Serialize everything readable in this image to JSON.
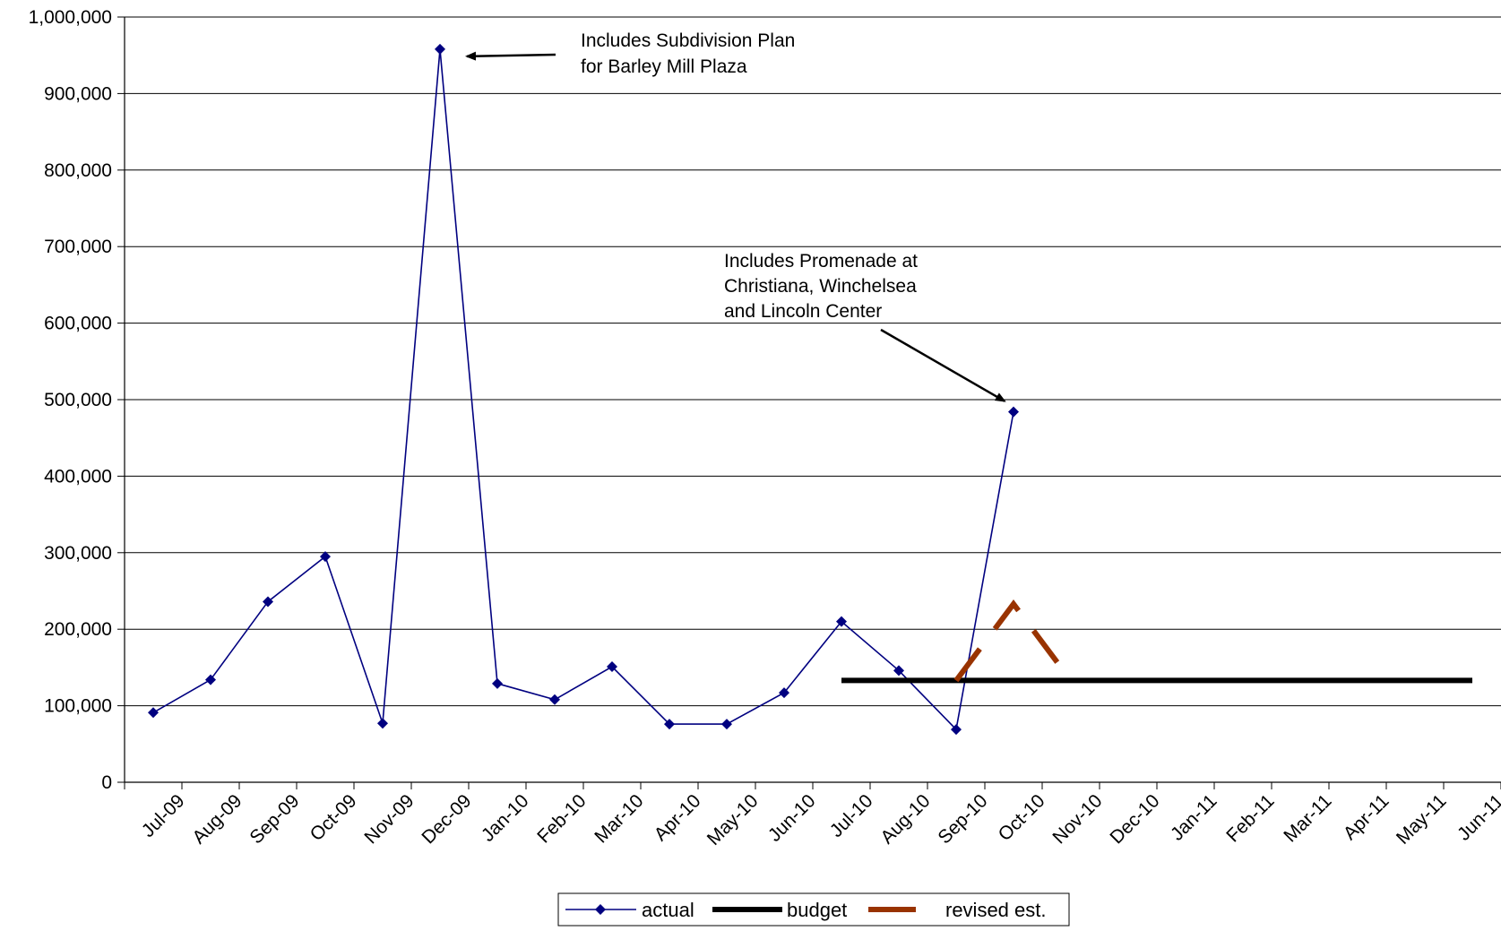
{
  "chart_data": {
    "type": "line",
    "categories": [
      "Jul-09",
      "Aug-09",
      "Sep-09",
      "Oct-09",
      "Nov-09",
      "Dec-09",
      "Jan-10",
      "Feb-10",
      "Mar-10",
      "Apr-10",
      "May-10",
      "Jun-10",
      "Jul-10",
      "Aug-10",
      "Sep-10",
      "Oct-10",
      "Nov-10",
      "Dec-10",
      "Jan-11",
      "Feb-11",
      "Mar-11",
      "Apr-11",
      "May-11",
      "Jun-11"
    ],
    "ylim": [
      0,
      1000000
    ],
    "yticks": [
      0,
      100000,
      200000,
      300000,
      400000,
      500000,
      600000,
      700000,
      800000,
      900000,
      1000000
    ],
    "ytick_labels": [
      "0",
      "100,000",
      "200,000",
      "300,000",
      "400,000",
      "500,000",
      "600,000",
      "700,000",
      "800,000",
      "900,000",
      "1,000,000"
    ],
    "grid": "horizontal",
    "legend_position": "bottom",
    "series": [
      {
        "name": "actual",
        "color": "#000080",
        "style": "line-diamond",
        "values": [
          91000,
          134000,
          236000,
          295000,
          77000,
          958000,
          129000,
          108000,
          151000,
          76000,
          76000,
          117000,
          210000,
          146000,
          69000,
          484000,
          null,
          null,
          null,
          null,
          null,
          null,
          null,
          null
        ]
      },
      {
        "name": "budget",
        "color": "#000000",
        "style": "thick-solid",
        "values": [
          null,
          null,
          null,
          null,
          null,
          null,
          null,
          null,
          null,
          null,
          null,
          null,
          133000,
          133000,
          133000,
          133000,
          133000,
          133000,
          133000,
          133000,
          133000,
          133000,
          133000,
          133000
        ]
      },
      {
        "name": "revised est.",
        "color": "#993300",
        "style": "thick-dashed",
        "values": [
          null,
          null,
          null,
          null,
          null,
          null,
          null,
          null,
          null,
          null,
          null,
          null,
          null,
          null,
          133000,
          233000,
          133000,
          null,
          null,
          null,
          null,
          null,
          null,
          null
        ]
      }
    ],
    "annotations": [
      {
        "lines": [
          "Includes Subdivision Plan",
          "for Barley Mill Plaza"
        ],
        "target_category": "Dec-09",
        "target_value": 958000
      },
      {
        "lines": [
          "Includes Promenade at",
          "Christiana, Winchelsea",
          "and Lincoln Center"
        ],
        "target_category": "Oct-10",
        "target_value": 484000
      }
    ]
  }
}
